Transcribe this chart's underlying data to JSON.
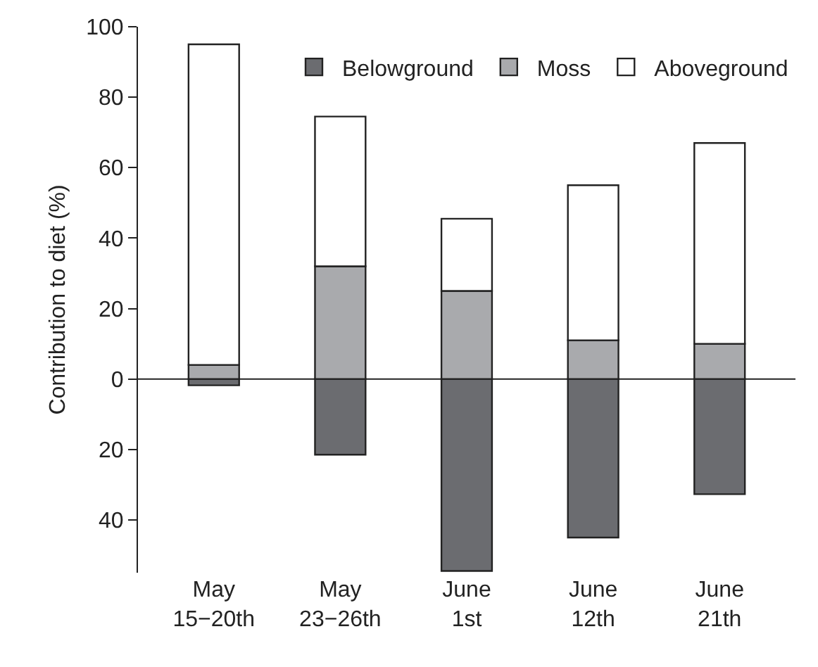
{
  "chart_data": {
    "type": "bar",
    "stacked": true,
    "ylabel": "Contribution to diet (%)",
    "categories": [
      "May\n15−20th",
      "May\n23−26th",
      "June\n1st",
      "June\n12th",
      "June\n21th"
    ],
    "series": [
      {
        "name": "Belowground",
        "color": "#6b6c70",
        "values": [
          -1.8,
          -21.5,
          -54.5,
          -45,
          -32.7
        ]
      },
      {
        "name": "Moss",
        "color": "#a9aaad",
        "values": [
          4,
          32,
          25,
          11,
          10
        ]
      },
      {
        "name": "Aboveground",
        "color": "#ffffff",
        "values": [
          91,
          42.5,
          20.5,
          44,
          57
        ]
      }
    ],
    "ylim": [
      -55,
      100
    ],
    "yticks": [
      {
        "value": -40,
        "label": "40"
      },
      {
        "value": -20,
        "label": "20"
      },
      0,
      20,
      40,
      60,
      80,
      100
    ],
    "ref_lines": [
      {
        "axis": "y",
        "value": 0
      }
    ],
    "legend": "top right"
  }
}
